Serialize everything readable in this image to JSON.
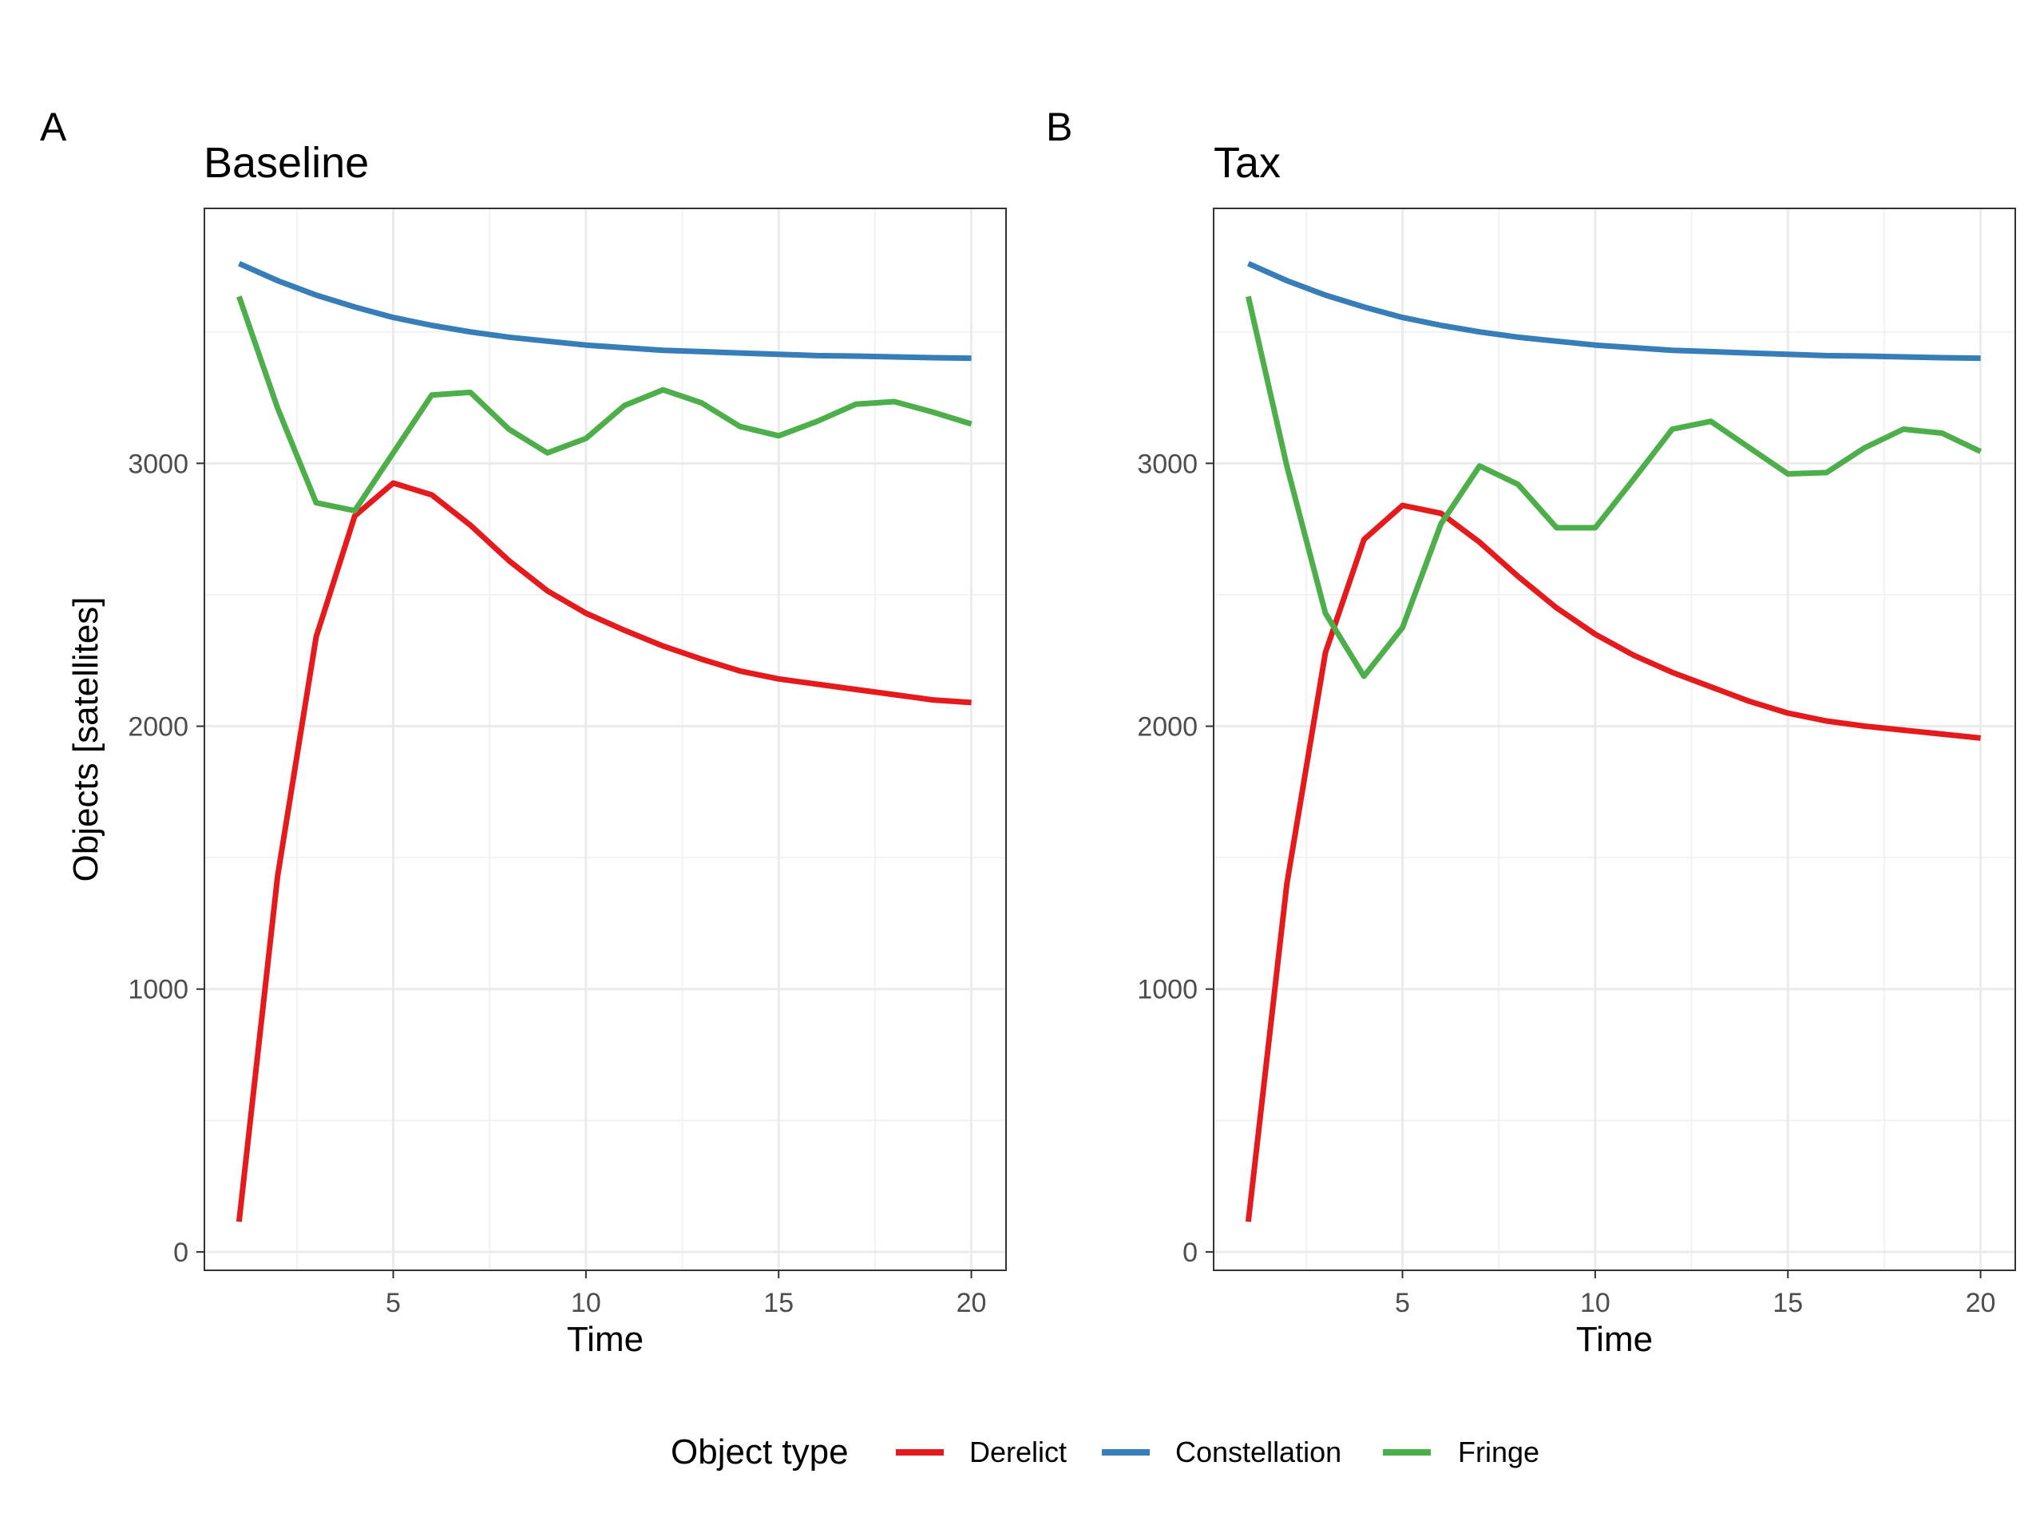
{
  "chart_data": [
    {
      "type": "line",
      "tag": "A",
      "title": "Baseline",
      "xlabel": "Time",
      "ylabel": "Objects [satellites]",
      "xlim": [
        0.1,
        20.9
      ],
      "ylim": [
        -70,
        3970
      ],
      "xticks": [
        5,
        10,
        15,
        20
      ],
      "yticks": [
        0,
        1000,
        2000,
        3000
      ],
      "grid": true,
      "x": [
        1,
        2,
        3,
        4,
        5,
        6,
        7,
        8,
        9,
        10,
        11,
        12,
        13,
        14,
        15,
        16,
        17,
        18,
        19,
        20
      ],
      "series": [
        {
          "name": "Derelict",
          "color": "#e41a1c",
          "values": [
            115,
            1430,
            2340,
            2800,
            2925,
            2880,
            2765,
            2630,
            2515,
            2430,
            2365,
            2305,
            2255,
            2210,
            2180,
            2160,
            2140,
            2120,
            2100,
            2090
          ]
        },
        {
          "name": "Constellation",
          "color": "#377eb8",
          "values": [
            3760,
            3695,
            3640,
            3595,
            3555,
            3525,
            3500,
            3480,
            3465,
            3450,
            3440,
            3430,
            3425,
            3420,
            3415,
            3410,
            3408,
            3405,
            3402,
            3400
          ]
        },
        {
          "name": "Fringe",
          "color": "#4daf4a",
          "values": [
            3635,
            3210,
            2850,
            2820,
            3040,
            3260,
            3270,
            3130,
            3040,
            3095,
            3220,
            3280,
            3230,
            3140,
            3105,
            3160,
            3225,
            3235,
            3195,
            3150
          ]
        }
      ]
    },
    {
      "type": "line",
      "tag": "B",
      "title": "Tax",
      "xlabel": "Time",
      "ylabel": "",
      "xlim": [
        0.1,
        20.9
      ],
      "ylim": [
        -70,
        3970
      ],
      "xticks": [
        5,
        10,
        15,
        20
      ],
      "yticks": [
        0,
        1000,
        2000,
        3000
      ],
      "grid": true,
      "x": [
        1,
        2,
        3,
        4,
        5,
        6,
        7,
        8,
        9,
        10,
        11,
        12,
        13,
        14,
        15,
        16,
        17,
        18,
        19,
        20
      ],
      "series": [
        {
          "name": "Derelict",
          "color": "#e41a1c",
          "values": [
            115,
            1400,
            2280,
            2710,
            2840,
            2810,
            2700,
            2570,
            2450,
            2350,
            2270,
            2205,
            2150,
            2095,
            2050,
            2020,
            2000,
            1985,
            1970,
            1955
          ]
        },
        {
          "name": "Constellation",
          "color": "#377eb8",
          "values": [
            3760,
            3695,
            3640,
            3595,
            3555,
            3525,
            3500,
            3480,
            3465,
            3450,
            3440,
            3430,
            3425,
            3420,
            3415,
            3410,
            3408,
            3405,
            3402,
            3400
          ]
        },
        {
          "name": "Fringe",
          "color": "#4daf4a",
          "values": [
            3635,
            2990,
            2430,
            2190,
            2375,
            2770,
            2990,
            2920,
            2755,
            2755,
            2940,
            3130,
            3160,
            3060,
            2960,
            2965,
            3060,
            3130,
            3115,
            3045
          ]
        }
      ]
    }
  ],
  "legend": {
    "title": "Object type",
    "position": "bottom",
    "items": [
      {
        "label": "Derelict",
        "color": "#e41a1c"
      },
      {
        "label": "Constellation",
        "color": "#377eb8"
      },
      {
        "label": "Fringe",
        "color": "#4daf4a"
      }
    ]
  }
}
